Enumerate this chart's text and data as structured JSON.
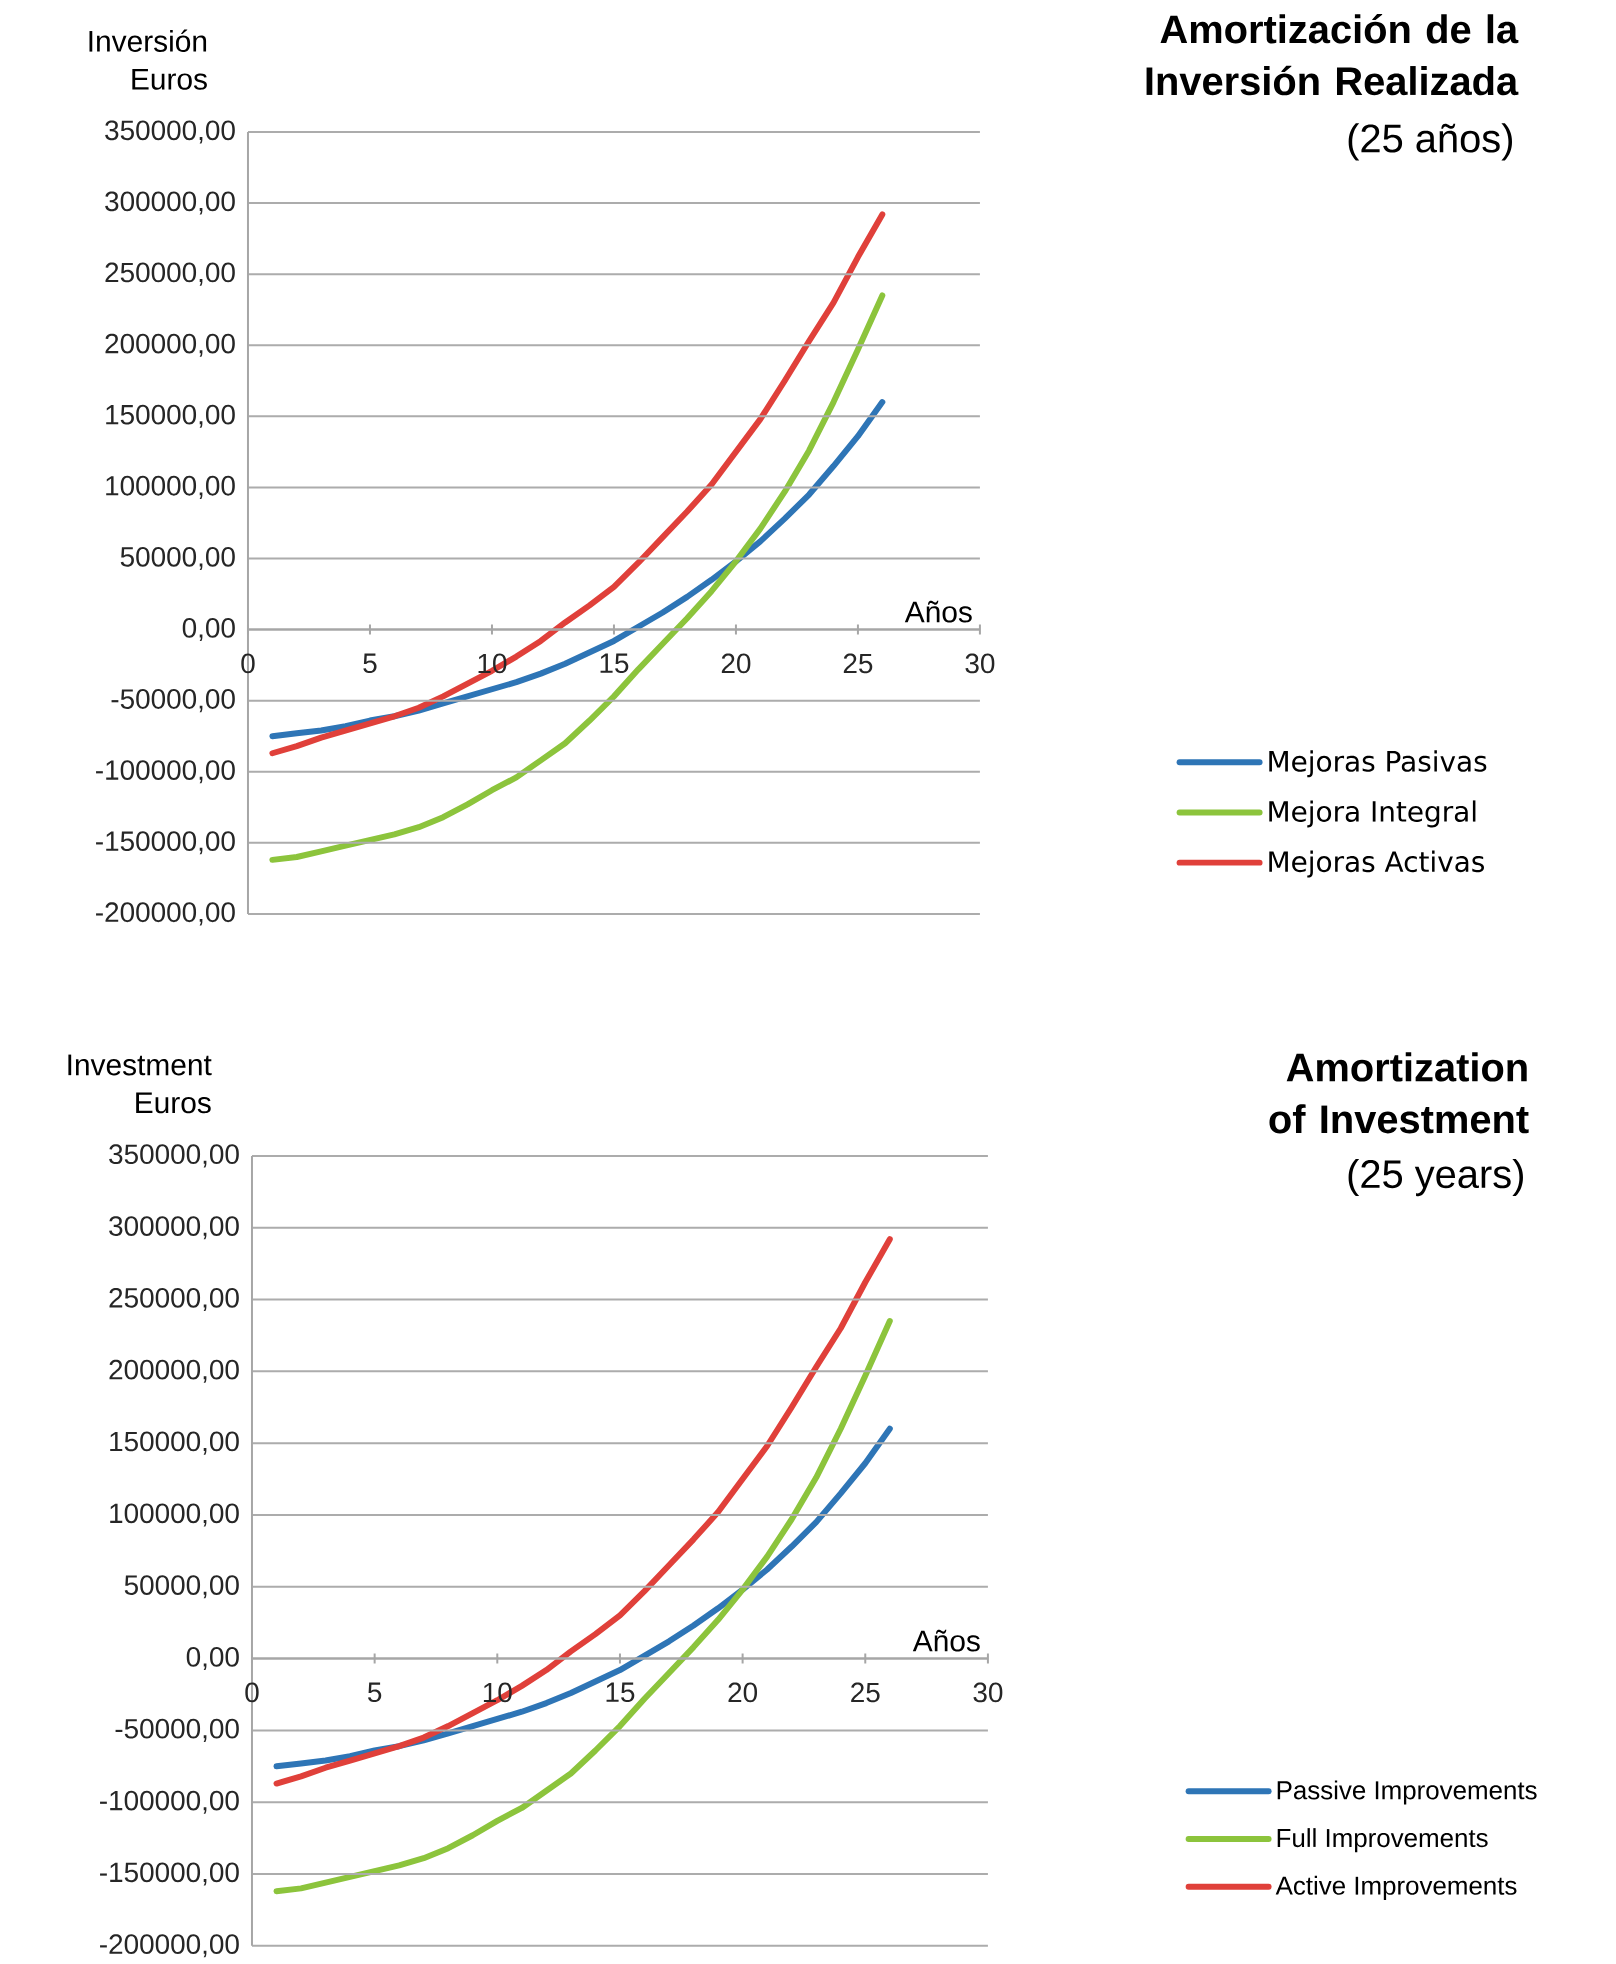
{
  "chart_data": [
    {
      "type": "line",
      "annotations": [
        "Amortización de la Inversión Realizada",
        "(25 años)"
      ],
      "ylabel": "Inversión Euros",
      "xlabel": "Años",
      "x": [
        1,
        2,
        3,
        4,
        5,
        6,
        7,
        8,
        9,
        10,
        11,
        12,
        13,
        14,
        15,
        16,
        17,
        18,
        19,
        20,
        21,
        22,
        23,
        24,
        25,
        26
      ],
      "series": [
        {
          "name": "Mejoras Pasivas",
          "color": "#2e75b6",
          "values": [
            -75000,
            -73000,
            -71000,
            -68000,
            -64000,
            -61000,
            -57000,
            -52000,
            -47000,
            -42000,
            -37000,
            -31000,
            -24000,
            -16000,
            -8000,
            2000,
            12000,
            23000,
            35000,
            48000,
            62000,
            78000,
            95000,
            115000,
            136000,
            160000
          ]
        },
        {
          "name": "Mejora Integral",
          "color": "#8cc43c",
          "values": [
            -162000,
            -160000,
            -156000,
            -152000,
            -148000,
            -144000,
            -139000,
            -132000,
            -123000,
            -113000,
            -104000,
            -92000,
            -80000,
            -64000,
            -47000,
            -28000,
            -10000,
            8000,
            27000,
            48000,
            71000,
            97000,
            126000,
            160000,
            197000,
            235000
          ]
        },
        {
          "name": "Mejoras Activas",
          "color": "#e0403a",
          "values": [
            -87000,
            -82000,
            -76000,
            -71000,
            -66000,
            -61000,
            -55000,
            -47000,
            -38000,
            -29000,
            -19000,
            -8000,
            5000,
            17000,
            30000,
            47000,
            65000,
            83000,
            102000,
            125000,
            148000,
            175000,
            203000,
            230000,
            262000,
            292000
          ]
        }
      ],
      "xlim": [
        0,
        30
      ],
      "xticks": [
        0,
        5,
        10,
        15,
        20,
        25,
        30
      ],
      "ylim": [
        -200000,
        350000
      ],
      "yticks": [
        {
          "value": -200000,
          "label": "-200000,00"
        },
        {
          "value": -150000,
          "label": "-150000,00"
        },
        {
          "value": -100000,
          "label": "-100000,00"
        },
        {
          "value": -50000,
          "label": "-50000,00"
        },
        {
          "value": 0,
          "label": "0,00"
        },
        {
          "value": 50000,
          "label": "50000,00"
        },
        {
          "value": 100000,
          "label": "100000,00"
        },
        {
          "value": 150000,
          "label": "150000,00"
        },
        {
          "value": 200000,
          "label": "200000,00"
        },
        {
          "value": 250000,
          "label": "250000,00"
        },
        {
          "value": 300000,
          "label": "300000,00"
        },
        {
          "value": 350000,
          "label": "350000,00"
        }
      ],
      "grid": "y",
      "legend": "right",
      "marker": "none",
      "line_style": "solid"
    },
    {
      "type": "line",
      "annotations": [
        "Amortization of Investment",
        "(25 years)"
      ],
      "ylabel": "Investment Euros",
      "xlabel": "Años",
      "x": [
        1,
        2,
        3,
        4,
        5,
        6,
        7,
        8,
        9,
        10,
        11,
        12,
        13,
        14,
        15,
        16,
        17,
        18,
        19,
        20,
        21,
        22,
        23,
        24,
        25,
        26
      ],
      "series": [
        {
          "name": "Passive Improvements",
          "color": "#2e75b6",
          "values": [
            -75000,
            -73000,
            -71000,
            -68000,
            -64000,
            -61000,
            -57000,
            -52000,
            -47000,
            -42000,
            -37000,
            -31000,
            -24000,
            -16000,
            -8000,
            2000,
            12000,
            23000,
            35000,
            48000,
            62000,
            78000,
            95000,
            115000,
            136000,
            160000
          ]
        },
        {
          "name": "Full Improvements",
          "color": "#8cc43c",
          "values": [
            -162000,
            -160000,
            -156000,
            -152000,
            -148000,
            -144000,
            -139000,
            -132000,
            -123000,
            -113000,
            -104000,
            -92000,
            -80000,
            -64000,
            -47000,
            -28000,
            -10000,
            8000,
            27000,
            48000,
            71000,
            97000,
            126000,
            160000,
            197000,
            235000
          ]
        },
        {
          "name": "Active Improvements",
          "color": "#e0403a",
          "values": [
            -87000,
            -82000,
            -76000,
            -71000,
            -66000,
            -61000,
            -55000,
            -47000,
            -38000,
            -29000,
            -19000,
            -8000,
            5000,
            17000,
            30000,
            47000,
            65000,
            83000,
            102000,
            125000,
            148000,
            175000,
            203000,
            230000,
            262000,
            292000
          ]
        }
      ],
      "xlim": [
        0,
        30
      ],
      "xticks": [
        0,
        5,
        10,
        15,
        20,
        25,
        30
      ],
      "ylim": [
        -200000,
        350000
      ],
      "yticks": [
        {
          "value": -200000,
          "label": "-200000,00"
        },
        {
          "value": -150000,
          "label": "-150000,00"
        },
        {
          "value": -100000,
          "label": "-100000,00"
        },
        {
          "value": -50000,
          "label": "-50000,00"
        },
        {
          "value": 0,
          "label": "0,00"
        },
        {
          "value": 50000,
          "label": "50000,00"
        },
        {
          "value": 100000,
          "label": "100000,00"
        },
        {
          "value": 150000,
          "label": "150000,00"
        },
        {
          "value": 200000,
          "label": "200000,00"
        },
        {
          "value": 250000,
          "label": "250000,00"
        },
        {
          "value": 300000,
          "label": "300000,00"
        },
        {
          "value": 350000,
          "label": "350000,00"
        }
      ],
      "grid": "y",
      "legend": "right",
      "marker": "none",
      "line_style": "solid"
    }
  ]
}
